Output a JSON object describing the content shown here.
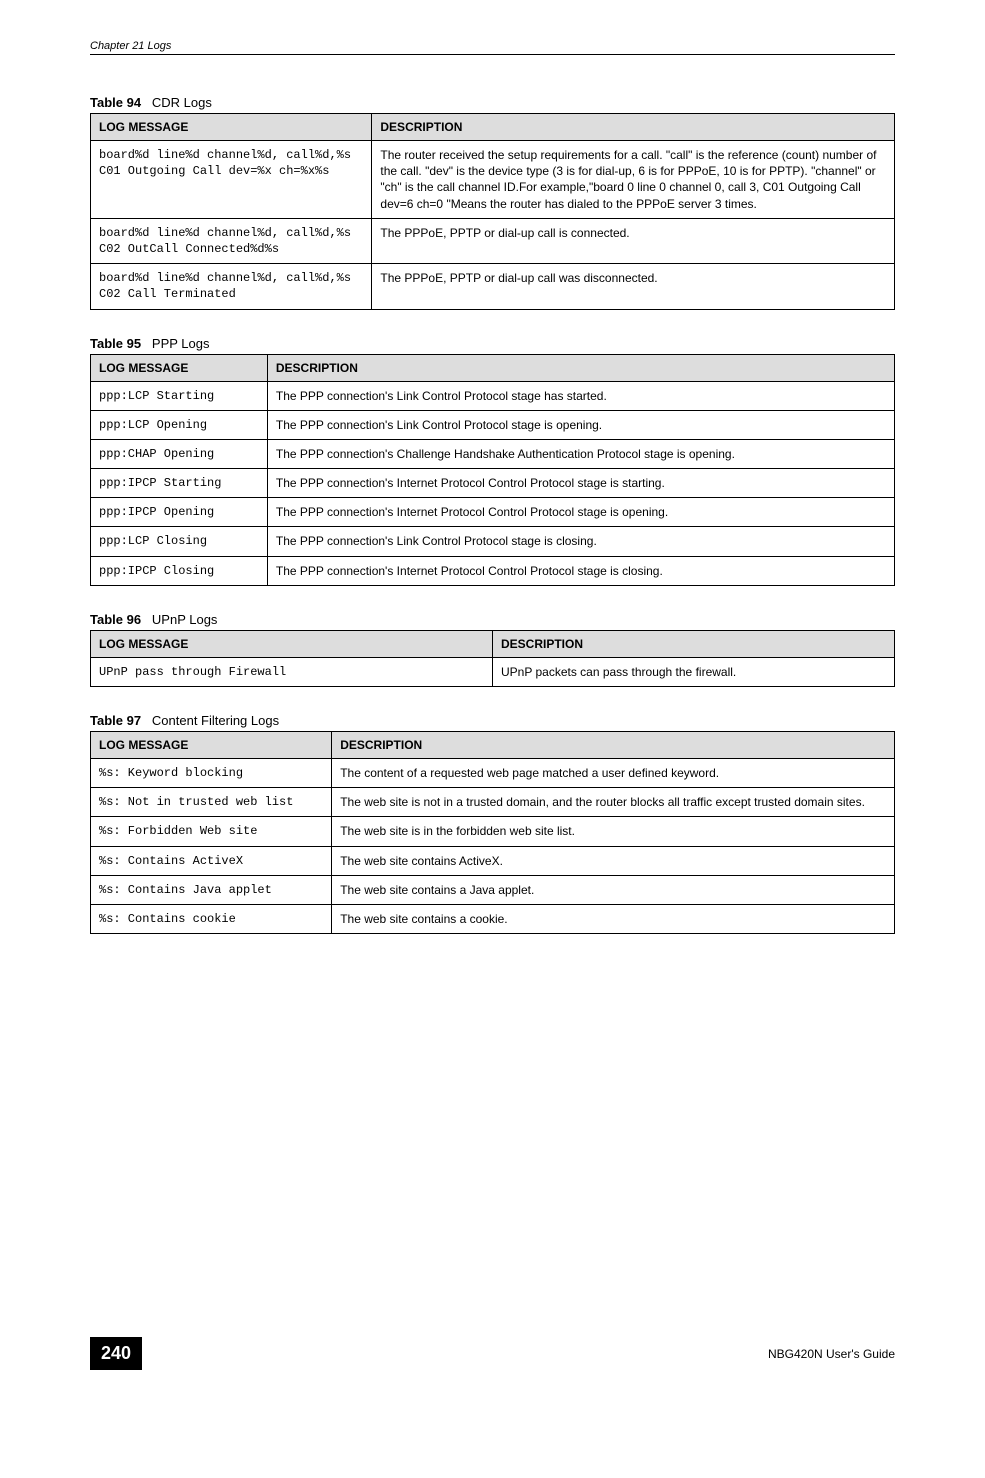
{
  "header": {
    "chapter": "Chapter 21 Logs"
  },
  "footer": {
    "pageNumber": "240",
    "guide": "NBG420N User's Guide"
  },
  "tables": {
    "t94": {
      "captionPrefix": "Table 94",
      "captionTitle": "CDR Logs",
      "headers": [
        "LOG MESSAGE",
        "DESCRIPTION"
      ],
      "colWidths": [
        "35%",
        "65%"
      ],
      "rows": [
        {
          "log": "board%d line%d channel%d, call%d,%s C01 Outgoing Call dev=%x ch=%x%s",
          "desc": "The router received the setup requirements for a call. \"call\" is the reference (count) number of the call. \"dev\" is the device type (3 is for dial-up, 6 is for PPPoE, 10 is for PPTP). \"channel\" or \"ch\" is the call channel ID.For example,\"board 0 line 0 channel 0, call 3, C01 Outgoing Call dev=6 ch=0 \"Means the router has dialed to the PPPoE server 3 times."
        },
        {
          "log": "board%d line%d channel%d, call%d,%s C02 OutCall Connected%d%s",
          "desc": "The PPPoE, PPTP or dial-up call is connected."
        },
        {
          "log": "board%d line%d channel%d, call%d,%s C02 Call Terminated",
          "desc": "The PPPoE, PPTP or dial-up call was disconnected."
        }
      ]
    },
    "t95": {
      "captionPrefix": "Table 95",
      "captionTitle": "PPP Logs",
      "headers": [
        "LOG MESSAGE",
        "DESCRIPTION"
      ],
      "colWidths": [
        "22%",
        "78%"
      ],
      "rows": [
        {
          "log": "ppp:LCP Starting",
          "desc": "The PPP connection's Link Control Protocol stage has started."
        },
        {
          "log": "ppp:LCP Opening",
          "desc": "The PPP connection's Link Control Protocol stage is opening."
        },
        {
          "log": "ppp:CHAP Opening",
          "desc": "The PPP connection's Challenge Handshake Authentication Protocol stage is opening."
        },
        {
          "log": "ppp:IPCP Starting",
          "desc": "The PPP connection's Internet Protocol Control Protocol stage is starting."
        },
        {
          "log": "ppp:IPCP Opening",
          "desc": "The PPP connection's Internet Protocol Control Protocol stage is opening."
        },
        {
          "log": "ppp:LCP Closing",
          "desc": "The PPP connection's Link Control Protocol stage is closing."
        },
        {
          "log": "ppp:IPCP Closing",
          "desc": "The PPP connection's Internet Protocol Control Protocol stage is closing."
        }
      ]
    },
    "t96": {
      "captionPrefix": "Table 96",
      "captionTitle": "UPnP Logs",
      "headers": [
        "LOG MESSAGE",
        "DESCRIPTION"
      ],
      "colWidths": [
        "50%",
        "50%"
      ],
      "rows": [
        {
          "log": "UPnP pass through Firewall",
          "desc": "UPnP packets can pass through the firewall."
        }
      ]
    },
    "t97": {
      "captionPrefix": "Table 97",
      "captionTitle": "Content Filtering Logs",
      "headers": [
        "LOG MESSAGE",
        "DESCRIPTION"
      ],
      "colWidths": [
        "30%",
        "70%"
      ],
      "rows": [
        {
          "log": "%s: Keyword blocking",
          "desc": "The content of a requested web page matched a user defined keyword."
        },
        {
          "log": "%s: Not in trusted web list",
          "desc": "The web site is not in a trusted domain, and the router blocks all traffic except trusted domain sites."
        },
        {
          "log": "%s: Forbidden Web site",
          "desc": "The web site is in the forbidden web site list."
        },
        {
          "log": "%s: Contains ActiveX",
          "desc": "The web site contains ActiveX."
        },
        {
          "log": "%s: Contains Java applet",
          "desc": "The web site contains a Java applet."
        },
        {
          "log": "%s: Contains cookie",
          "desc": "The web site contains a cookie."
        }
      ]
    }
  }
}
